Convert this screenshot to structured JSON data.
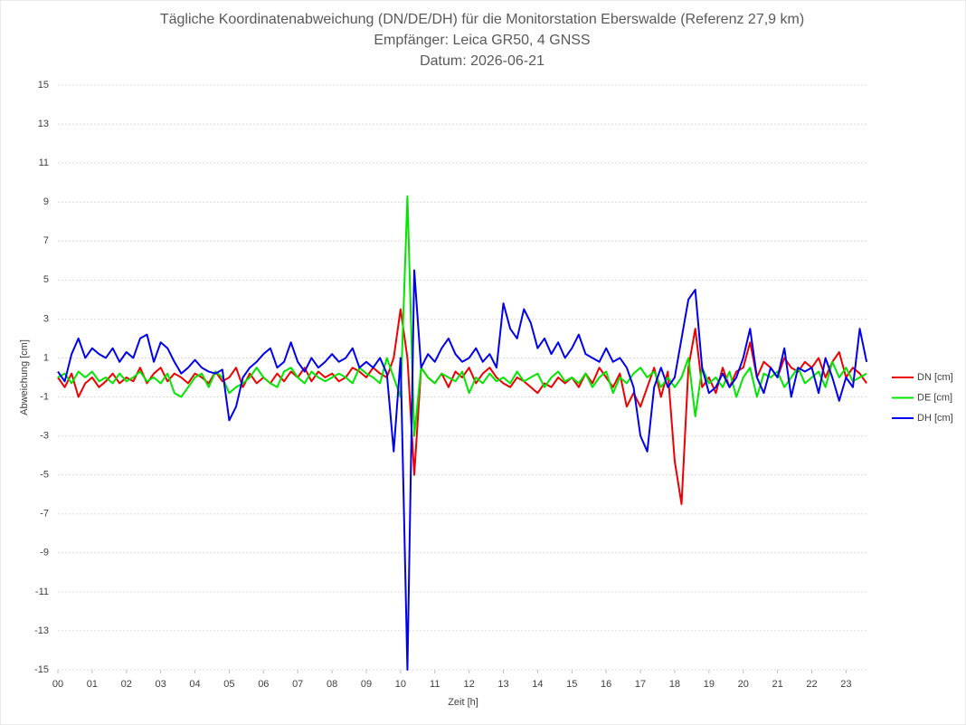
{
  "chart_data": {
    "type": "line",
    "title": "Tägliche Koordinatenabweichung (DN/DE/DH) für die Monitorstation Eberswalde (Referenz 27,9 km)",
    "subtitle": "Empfänger: Leica GR50, 4 GNSS",
    "date_label": "Datum: 2026-06-21",
    "x_label": "Zeit [h]",
    "y_label": "Abweichung [cm]",
    "xlim": [
      0,
      23.65
    ],
    "ylim": [
      -15,
      15
    ],
    "xticks": [
      {
        "value": 0,
        "label": "00"
      },
      {
        "value": 1,
        "label": "01"
      },
      {
        "value": 2,
        "label": "02"
      },
      {
        "value": 3,
        "label": "03"
      },
      {
        "value": 4,
        "label": "04"
      },
      {
        "value": 5,
        "label": "05"
      },
      {
        "value": 6,
        "label": "06"
      },
      {
        "value": 7,
        "label": "07"
      },
      {
        "value": 8,
        "label": "08"
      },
      {
        "value": 9,
        "label": "09"
      },
      10,
      11,
      12,
      13,
      14,
      15,
      16,
      17,
      18,
      19,
      20,
      21,
      22,
      23
    ],
    "yticks": [
      -15,
      -13,
      -11,
      -9,
      -7,
      -5,
      -3,
      -1,
      1,
      3,
      5,
      7,
      9,
      11,
      13,
      15
    ],
    "grid": true,
    "legend": "right",
    "x": [
      0,
      0.2,
      0.4,
      0.6,
      0.8,
      1,
      1.2,
      1.4,
      1.6,
      1.8,
      2,
      2.2,
      2.4,
      2.6,
      2.8,
      3,
      3.2,
      3.4,
      3.6,
      3.8,
      4,
      4.2,
      4.4,
      4.6,
      4.8,
      5,
      5.2,
      5.4,
      5.6,
      5.8,
      6,
      6.2,
      6.4,
      6.6,
      6.8,
      7,
      7.2,
      7.4,
      7.6,
      7.8,
      8,
      8.2,
      8.4,
      8.6,
      8.8,
      9,
      9.2,
      9.4,
      9.6,
      9.8,
      10,
      10.2,
      10.4,
      10.6,
      10.8,
      11,
      11.2,
      11.4,
      11.6,
      11.8,
      12,
      12.2,
      12.4,
      12.6,
      12.8,
      13,
      13.2,
      13.4,
      13.6,
      13.8,
      14,
      14.2,
      14.4,
      14.6,
      14.8,
      15,
      15.2,
      15.4,
      15.6,
      15.8,
      16,
      16.2,
      16.4,
      16.6,
      16.8,
      17,
      17.2,
      17.4,
      17.6,
      17.8,
      18,
      18.2,
      18.4,
      18.6,
      18.8,
      19,
      19.2,
      19.4,
      19.6,
      19.8,
      20,
      20.2,
      20.4,
      20.6,
      20.8,
      21,
      21.2,
      21.4,
      21.6,
      21.8,
      22,
      22.2,
      22.4,
      22.6,
      22.8,
      23,
      23.2,
      23.4,
      23.6
    ],
    "series": [
      {
        "name": "DN [cm]",
        "color": "#ee0000",
        "values": [
          0.0,
          -0.5,
          0.2,
          -1.0,
          -0.3,
          0.0,
          -0.5,
          -0.2,
          0.2,
          -0.3,
          0.0,
          -0.2,
          0.5,
          -0.3,
          0.2,
          0.5,
          -0.2,
          0.2,
          0.0,
          -0.3,
          0.2,
          0.0,
          -0.3,
          0.3,
          -0.2,
          0.0,
          0.5,
          -0.5,
          0.2,
          -0.3,
          0.0,
          -0.3,
          0.2,
          -0.2,
          0.3,
          0.0,
          0.5,
          -0.2,
          0.3,
          0.0,
          0.2,
          -0.2,
          0.0,
          0.5,
          0.3,
          0.0,
          0.5,
          0.2,
          0.0,
          1.0,
          3.5,
          1.0,
          -5.0,
          0.5,
          0.0,
          -0.3,
          0.2,
          -0.5,
          0.3,
          0.0,
          0.5,
          -0.3,
          0.2,
          0.5,
          0.0,
          -0.3,
          -0.5,
          0.0,
          -0.2,
          -0.5,
          -0.8,
          -0.3,
          -0.5,
          0.0,
          -0.3,
          0.0,
          -0.5,
          0.2,
          -0.3,
          0.5,
          0.0,
          -0.5,
          0.2,
          -1.5,
          -0.8,
          -1.5,
          -0.5,
          0.5,
          -1.0,
          0.3,
          -4.3,
          -6.5,
          0.5,
          2.5,
          -0.5,
          0.0,
          -0.8,
          0.5,
          -0.5,
          0.3,
          0.5,
          1.8,
          0.0,
          0.8,
          0.5,
          0.0,
          1.0,
          0.5,
          0.3,
          0.8,
          0.5,
          1.0,
          0.0,
          0.8,
          1.3,
          0.0,
          0.5,
          0.2,
          -0.3
        ]
      },
      {
        "name": "DE [cm]",
        "color": "#00e600",
        "values": [
          0.0,
          0.2,
          -0.3,
          0.3,
          0.0,
          0.3,
          -0.2,
          0.0,
          -0.3,
          0.2,
          -0.2,
          0.0,
          0.3,
          -0.2,
          0.0,
          -0.3,
          0.2,
          -0.8,
          -1.0,
          -0.5,
          0.0,
          0.2,
          -0.5,
          0.3,
          0.0,
          -0.8,
          -0.5,
          -0.3,
          0.0,
          0.5,
          0.0,
          -0.3,
          -0.5,
          0.3,
          0.5,
          0.0,
          -0.3,
          0.3,
          0.0,
          -0.2,
          0.0,
          0.2,
          0.0,
          -0.3,
          0.5,
          0.2,
          0.0,
          -0.3,
          1.0,
          0.0,
          -1.0,
          9.3,
          -3.0,
          0.5,
          0.0,
          -0.3,
          0.2,
          0.0,
          -0.2,
          0.3,
          -0.8,
          0.0,
          -0.3,
          0.2,
          -0.2,
          0.0,
          -0.3,
          0.3,
          -0.2,
          0.0,
          0.2,
          -0.5,
          0.0,
          0.3,
          -0.2,
          0.0,
          -0.3,
          0.2,
          -0.5,
          0.0,
          0.3,
          -0.8,
          0.0,
          -0.3,
          0.2,
          0.5,
          0.0,
          0.3,
          -0.5,
          0.0,
          -0.5,
          0.0,
          1.0,
          -2.0,
          0.5,
          -0.3,
          0.0,
          -0.5,
          0.3,
          -1.0,
          0.0,
          0.5,
          -1.0,
          0.2,
          0.0,
          0.3,
          -0.5,
          0.0,
          0.5,
          -0.3,
          0.0,
          0.3,
          -0.5,
          0.8,
          0.0,
          0.5,
          -0.2,
          0.0,
          0.2
        ]
      },
      {
        "name": "DH [cm]",
        "color": "#0000ee",
        "values": [
          0.3,
          -0.2,
          1.2,
          2.0,
          1.0,
          1.5,
          1.2,
          1.0,
          1.5,
          0.8,
          1.3,
          1.0,
          2.0,
          2.2,
          0.8,
          1.8,
          1.5,
          0.8,
          0.2,
          0.5,
          0.9,
          0.5,
          0.3,
          0.2,
          0.4,
          -2.2,
          -1.5,
          0.0,
          0.5,
          0.8,
          1.2,
          1.5,
          0.5,
          0.8,
          1.8,
          0.8,
          0.3,
          1.0,
          0.5,
          0.8,
          1.2,
          0.8,
          1.0,
          1.5,
          0.5,
          0.8,
          0.5,
          1.0,
          0.2,
          -3.8,
          1.0,
          -15,
          5.5,
          0.5,
          1.2,
          0.8,
          1.5,
          2.0,
          1.2,
          0.8,
          1.0,
          1.5,
          0.8,
          1.2,
          0.5,
          3.8,
          2.5,
          2.0,
          3.5,
          2.8,
          1.5,
          2.0,
          1.2,
          1.8,
          1.0,
          1.5,
          2.2,
          1.2,
          1.0,
          0.8,
          1.5,
          0.8,
          1.0,
          0.5,
          -0.5,
          -3.0,
          -3.8,
          -0.5,
          0.5,
          -0.5,
          0.0,
          2.0,
          4.0,
          4.5,
          0.5,
          -0.8,
          -0.5,
          0.2,
          -0.5,
          0.0,
          1.0,
          2.5,
          0.0,
          -0.8,
          0.5,
          0.0,
          1.5,
          -1.0,
          0.5,
          0.3,
          0.5,
          -0.8,
          1.0,
          0.0,
          -1.2,
          0.0,
          -0.5,
          2.5,
          0.8
        ]
      }
    ]
  }
}
